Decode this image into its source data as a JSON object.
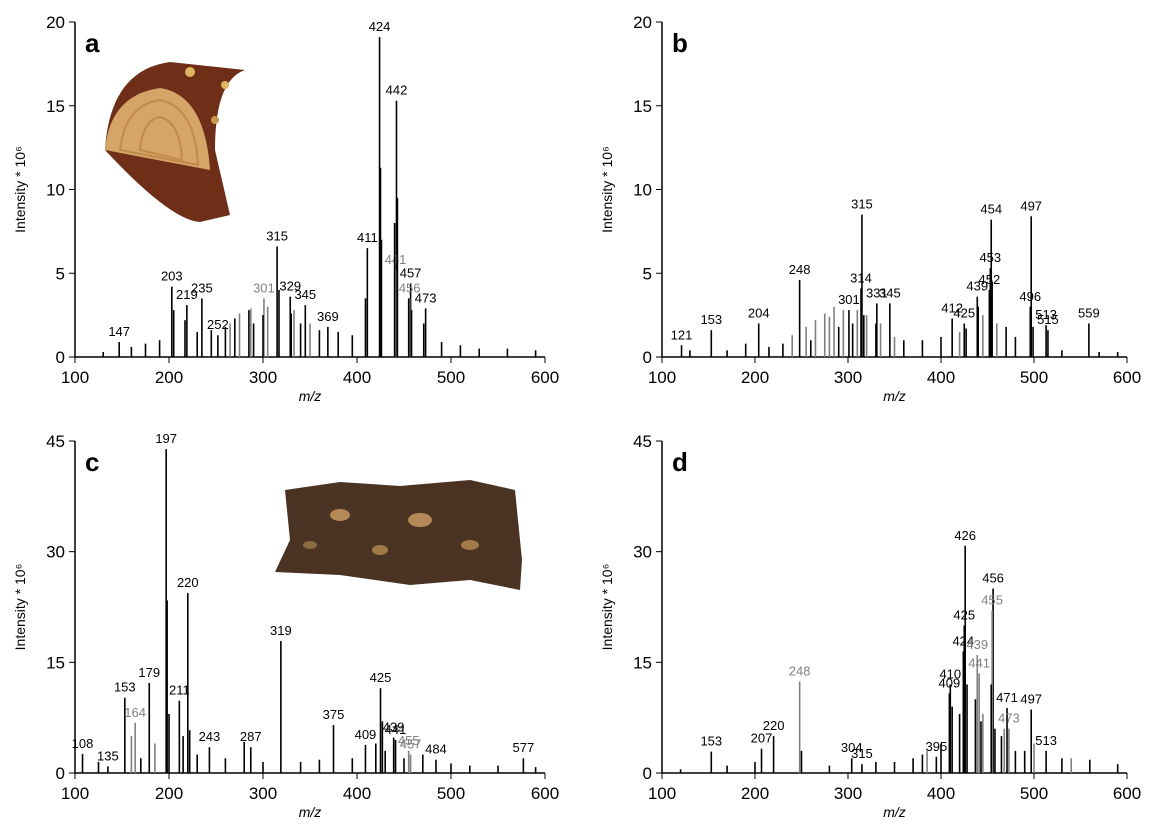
{
  "chart_data": [
    {
      "type": "bar",
      "panel": "a",
      "x_label": "m/z",
      "y_label": "Intensity * 10⁶",
      "xlim": [
        100,
        600
      ],
      "xticks": [
        100,
        200,
        300,
        400,
        500,
        600
      ],
      "ylim": [
        0,
        20
      ],
      "yticks": [
        0,
        5,
        10,
        15,
        20
      ],
      "series": [
        {
          "color": "#000000",
          "labeled": true,
          "x": [
            147,
            203,
            219,
            235,
            252,
            315,
            329,
            345,
            369,
            411,
            424,
            442,
            457,
            473
          ],
          "values": [
            0.9,
            4.2,
            3.1,
            3.5,
            1.3,
            6.6,
            3.6,
            3.1,
            1.8,
            6.5,
            19.1,
            15.3,
            4.4,
            2.9
          ]
        },
        {
          "color": "#808080",
          "labeled": true,
          "x": [
            301,
            441,
            456
          ],
          "values": [
            3.5,
            5.2,
            3.5
          ]
        },
        {
          "color": "#000000",
          "labeled": false,
          "x": [
            130,
            160,
            175,
            190,
            205,
            217,
            230,
            245,
            260,
            270,
            285,
            290,
            300,
            317,
            330,
            340,
            360,
            380,
            395,
            409,
            425,
            426,
            440,
            443,
            455,
            458,
            471,
            490,
            510,
            530,
            560,
            590
          ],
          "values": [
            0.3,
            0.6,
            0.8,
            1.0,
            2.8,
            2.2,
            1.5,
            1.6,
            1.8,
            2.3,
            2.8,
            2.0,
            2.5,
            4.0,
            2.6,
            2.0,
            1.6,
            1.5,
            1.3,
            3.5,
            11.3,
            7.0,
            8.0,
            9.5,
            3.5,
            2.8,
            2.0,
            0.9,
            0.7,
            0.5,
            0.5,
            0.4
          ]
        },
        {
          "color": "#808080",
          "labeled": false,
          "x": [
            265,
            275,
            287,
            305,
            333,
            350
          ],
          "values": [
            2.0,
            2.6,
            2.9,
            3.0,
            2.8,
            2.0
          ]
        }
      ]
    },
    {
      "type": "bar",
      "panel": "b",
      "x_label": "m/z",
      "y_label": "Intensity * 10⁶",
      "xlim": [
        100,
        600
      ],
      "xticks": [
        100,
        200,
        300,
        400,
        500,
        600
      ],
      "ylim": [
        0,
        20
      ],
      "yticks": [
        0,
        5,
        10,
        15,
        20
      ],
      "series": [
        {
          "color": "#000000",
          "labeled": true,
          "x": [
            121,
            153,
            204,
            248,
            301,
            314,
            315,
            331,
            345,
            412,
            425,
            439,
            452,
            453,
            454,
            496,
            497,
            513,
            515,
            559
          ],
          "values": [
            0.7,
            1.6,
            2.0,
            4.6,
            2.8,
            4.1,
            8.5,
            3.2,
            3.2,
            2.3,
            2.0,
            3.6,
            4.0,
            5.3,
            8.2,
            3.0,
            8.4,
            1.9,
            1.6,
            2.0
          ]
        },
        {
          "color": "#000000",
          "labeled": false,
          "x": [
            130,
            170,
            190,
            215,
            230,
            260,
            290,
            305,
            317,
            330,
            360,
            380,
            400,
            427,
            440,
            455,
            470,
            480,
            499,
            530,
            570,
            590
          ],
          "values": [
            0.4,
            0.4,
            0.8,
            0.6,
            0.8,
            1.0,
            1.8,
            2.0,
            2.5,
            2.0,
            1.0,
            1.0,
            1.2,
            1.7,
            3.0,
            4.5,
            1.8,
            1.2,
            1.8,
            0.4,
            0.3,
            0.3
          ]
        },
        {
          "color": "#808080",
          "labeled": false,
          "x": [
            240,
            255,
            265,
            275,
            280,
            285,
            295,
            310,
            320,
            335,
            350,
            420,
            445,
            460
          ],
          "values": [
            1.3,
            1.8,
            2.2,
            2.6,
            2.4,
            3.0,
            2.8,
            2.8,
            2.5,
            2.0,
            1.2,
            1.5,
            2.5,
            2.0
          ]
        }
      ]
    },
    {
      "type": "bar",
      "panel": "c",
      "x_label": "m/z",
      "y_label": "Intensity * 10⁶",
      "xlim": [
        100,
        600
      ],
      "xticks": [
        100,
        200,
        300,
        400,
        500,
        600
      ],
      "ylim": [
        0,
        45
      ],
      "yticks": [
        0,
        15,
        30,
        45
      ],
      "series": [
        {
          "color": "#000000",
          "labeled": true,
          "x": [
            108,
            135,
            153,
            179,
            197,
            211,
            220,
            243,
            287,
            319,
            375,
            409,
            425,
            439,
            441,
            484,
            577
          ],
          "values": [
            2.6,
            0.9,
            10.2,
            12.2,
            43.9,
            9.8,
            24.4,
            3.5,
            3.5,
            17.9,
            6.5,
            3.8,
            11.5,
            4.8,
            4.5,
            1.8,
            2.0
          ]
        },
        {
          "color": "#808080",
          "labeled": true,
          "x": [
            164,
            455,
            457
          ],
          "values": [
            6.8,
            3.0,
            2.5
          ]
        },
        {
          "color": "#000000",
          "labeled": false,
          "x": [
            125,
            170,
            198,
            200,
            215,
            222,
            230,
            260,
            280,
            300,
            340,
            360,
            395,
            420,
            427,
            430,
            450,
            470,
            500,
            520,
            550,
            590
          ],
          "values": [
            1.5,
            2.0,
            23.4,
            8.0,
            5.0,
            5.8,
            2.5,
            2.0,
            4.2,
            1.5,
            1.5,
            1.8,
            2.0,
            4.0,
            7.0,
            3.0,
            2.0,
            2.5,
            1.3,
            1.0,
            1.0,
            0.8
          ]
        },
        {
          "color": "#808080",
          "labeled": false,
          "x": [
            160,
            185
          ],
          "values": [
            5.0,
            4.0
          ]
        }
      ]
    },
    {
      "type": "bar",
      "panel": "d",
      "x_label": "m/z",
      "y_label": "Intensity * 10⁶",
      "xlim": [
        100,
        600
      ],
      "xticks": [
        100,
        200,
        300,
        400,
        500,
        600
      ],
      "ylim": [
        0,
        45
      ],
      "yticks": [
        0,
        15,
        30,
        45
      ],
      "series": [
        {
          "color": "#000000",
          "labeled": true,
          "x": [
            153,
            207,
            220,
            304,
            315,
            395,
            409,
            410,
            424,
            425,
            426,
            456,
            471,
            497,
            513
          ],
          "values": [
            2.9,
            3.3,
            5.0,
            2.0,
            1.2,
            2.2,
            10.8,
            12.0,
            16.5,
            20.0,
            30.8,
            25.0,
            8.8,
            8.6,
            3.0
          ]
        },
        {
          "color": "#808080",
          "labeled": true,
          "x": [
            248,
            439,
            441,
            455,
            473
          ],
          "values": [
            12.4,
            16.0,
            13.5,
            22.0,
            6.0
          ]
        },
        {
          "color": "#000000",
          "labeled": false,
          "x": [
            120,
            170,
            200,
            250,
            280,
            330,
            350,
            370,
            380,
            400,
            412,
            420,
            428,
            437,
            443,
            454,
            458,
            465,
            480,
            490,
            530,
            560,
            590
          ],
          "values": [
            0.5,
            1.0,
            1.5,
            3.0,
            1.0,
            1.5,
            1.5,
            2.0,
            2.5,
            4.0,
            9.0,
            8.0,
            12.0,
            10.0,
            7.0,
            12.0,
            6.0,
            5.0,
            3.0,
            3.0,
            2.0,
            1.8,
            1.2
          ]
        },
        {
          "color": "#808080",
          "labeled": false,
          "x": [
            385,
            445,
            468,
            500,
            540
          ],
          "values": [
            3.0,
            8.0,
            6.0,
            4.0,
            2.0
          ]
        }
      ]
    }
  ]
}
